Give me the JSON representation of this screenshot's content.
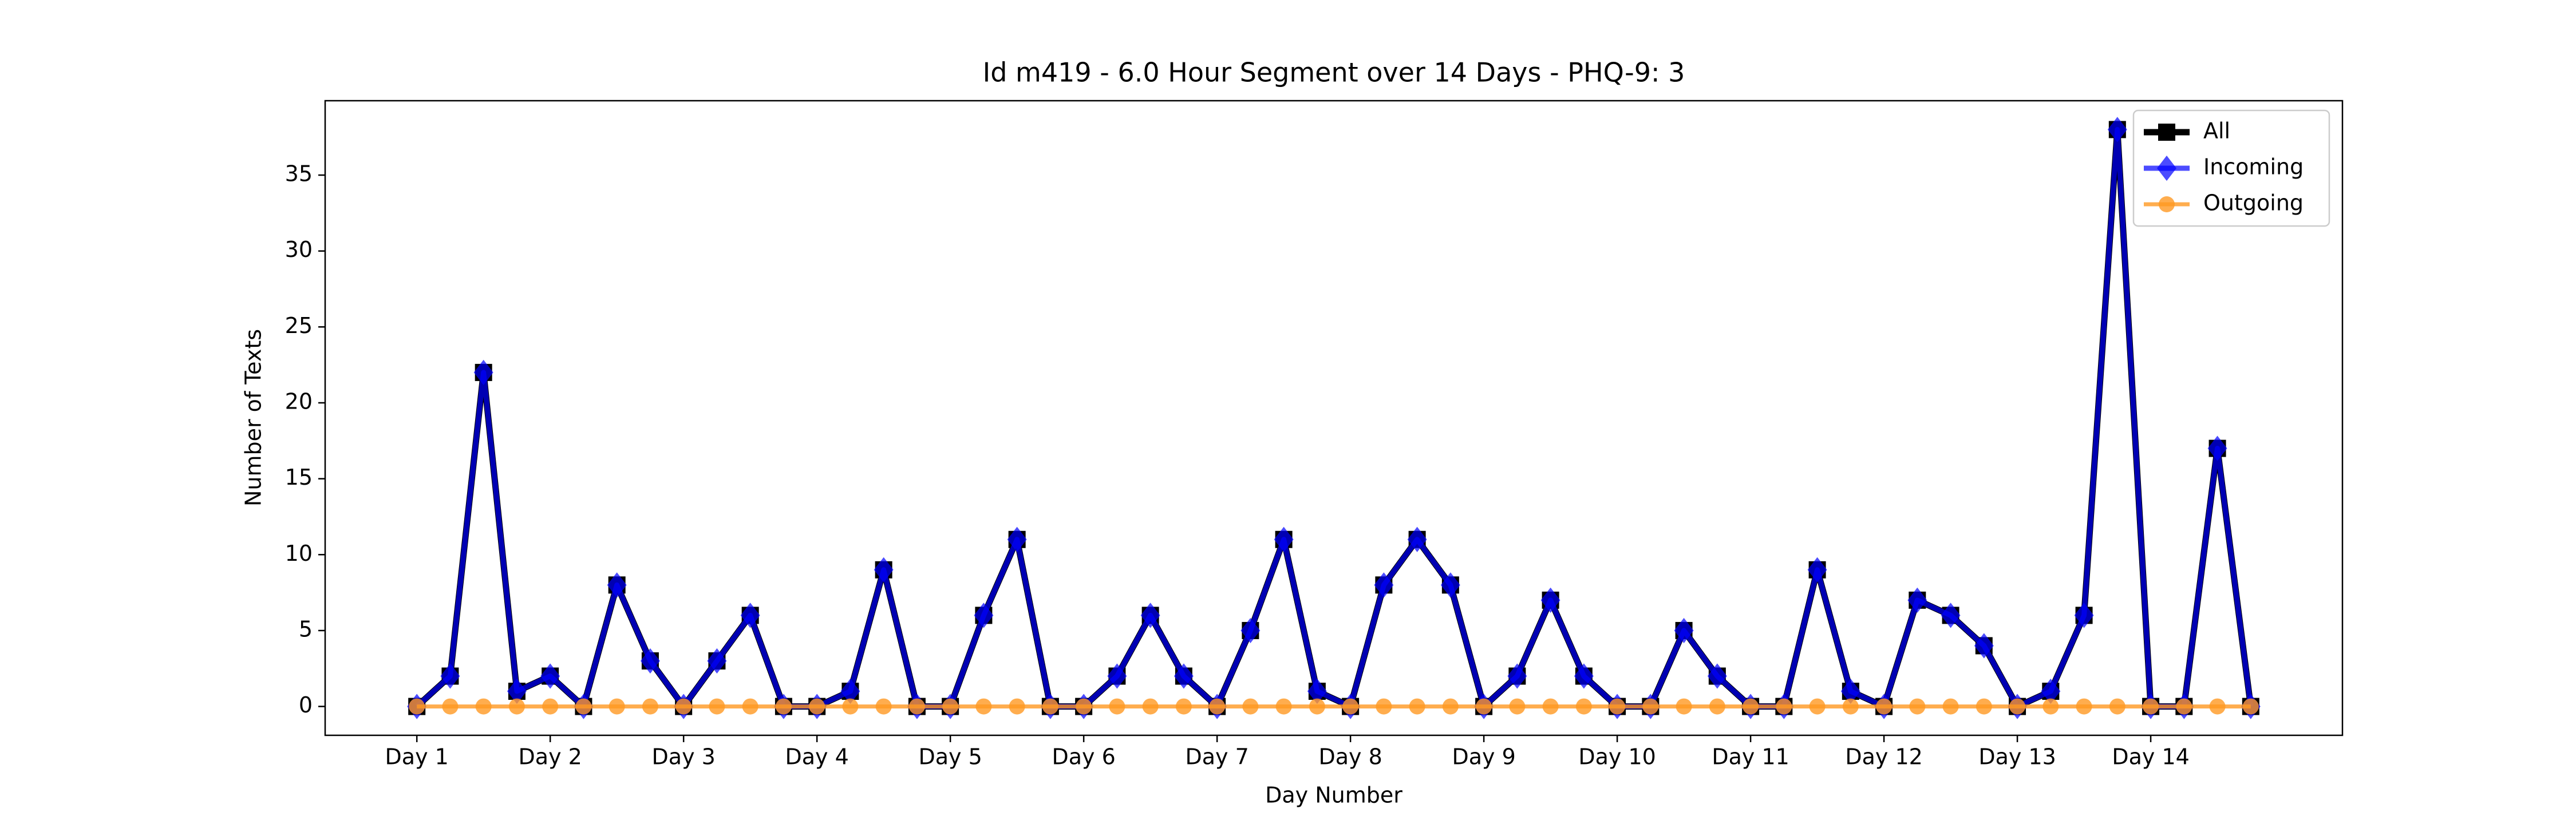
{
  "chart_data": {
    "type": "line",
    "title": "Id m419 - 6.0 Hour Segment over 14 Days - PHQ-9: 3",
    "x_label": "Day Number",
    "y_label": "Number of Texts",
    "categories": [
      "Day 1",
      null,
      null,
      null,
      "Day 2",
      null,
      null,
      null,
      "Day 3",
      null,
      null,
      null,
      "Day 4",
      null,
      null,
      null,
      "Day 5",
      null,
      null,
      null,
      "Day 6",
      null,
      null,
      null,
      "Day 7",
      null,
      null,
      null,
      "Day 8",
      null,
      null,
      null,
      "Day 9",
      null,
      null,
      null,
      "Day 10",
      null,
      null,
      null,
      "Day 11",
      null,
      null,
      null,
      "Day 12",
      null,
      null,
      null,
      "Day 13",
      null,
      null,
      null,
      "Day 14",
      null,
      null,
      null
    ],
    "series": [
      {
        "name": "All",
        "color": "#000000",
        "marker": "square",
        "values": [
          0,
          2,
          22,
          1,
          2,
          0,
          8,
          3,
          0,
          3,
          6,
          0,
          0,
          1,
          9,
          0,
          0,
          6,
          11,
          0,
          0,
          2,
          6,
          2,
          0,
          5,
          11,
          1,
          0,
          8,
          11,
          8,
          0,
          2,
          7,
          2,
          0,
          0,
          5,
          2,
          0,
          0,
          9,
          1,
          0,
          7,
          6,
          4,
          0,
          1,
          6,
          38,
          0,
          0,
          17,
          0
        ]
      },
      {
        "name": "Incoming",
        "color": "#0000ff",
        "marker": "diamond",
        "values": [
          0,
          2,
          22,
          1,
          2,
          0,
          8,
          3,
          0,
          3,
          6,
          0,
          0,
          1,
          9,
          0,
          0,
          6,
          11,
          0,
          0,
          2,
          6,
          2,
          0,
          5,
          11,
          1,
          0,
          8,
          11,
          8,
          0,
          2,
          7,
          2,
          0,
          0,
          5,
          2,
          0,
          0,
          9,
          1,
          0,
          7,
          6,
          4,
          0,
          1,
          6,
          38,
          0,
          0,
          17,
          0
        ]
      },
      {
        "name": "Outgoing",
        "color": "#ff9922",
        "marker": "circle",
        "values": [
          0,
          0,
          0,
          0,
          0,
          0,
          0,
          0,
          0,
          0,
          0,
          0,
          0,
          0,
          0,
          0,
          0,
          0,
          0,
          0,
          0,
          0,
          0,
          0,
          0,
          0,
          0,
          0,
          0,
          0,
          0,
          0,
          0,
          0,
          0,
          0,
          0,
          0,
          0,
          0,
          0,
          0,
          0,
          0,
          0,
          0,
          0,
          0,
          0,
          0,
          0,
          0,
          0,
          0,
          0,
          0
        ]
      }
    ],
    "ylim": [
      -1.9,
      39.9
    ],
    "yticks": [
      0,
      5,
      10,
      15,
      20,
      25,
      30,
      35
    ],
    "legend": "upper right",
    "grid": false
  }
}
